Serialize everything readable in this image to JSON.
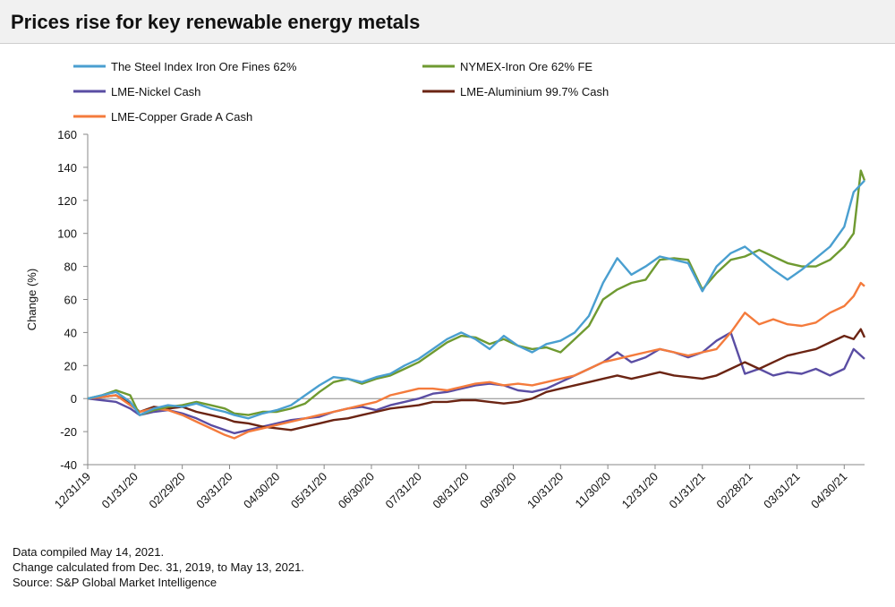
{
  "title": "Prices rise for key renewable energy metals",
  "notes": {
    "compiled": "Data compiled May 14, 2021.",
    "change": "Change calculated from Dec. 31, 2019, to May 13, 2021.",
    "source": "Source: S&P Global Market Intelligence"
  },
  "chart_data": {
    "type": "line",
    "title": "Prices rise for key renewable energy metals",
    "xlabel": "",
    "ylabel": "Change (%)",
    "ylim": [
      -40,
      160
    ],
    "yticks": [
      -40,
      -20,
      0,
      20,
      40,
      60,
      80,
      100,
      120,
      140,
      160
    ],
    "x_range_months": [
      0,
      16.43
    ],
    "xticks": [
      {
        "month": 0,
        "label": "12/31/19"
      },
      {
        "month": 1,
        "label": "01/31/20"
      },
      {
        "month": 2,
        "label": "02/29/20"
      },
      {
        "month": 3,
        "label": "03/31/20"
      },
      {
        "month": 4,
        "label": "04/30/20"
      },
      {
        "month": 5,
        "label": "05/31/20"
      },
      {
        "month": 6,
        "label": "06/30/20"
      },
      {
        "month": 7,
        "label": "07/31/20"
      },
      {
        "month": 8,
        "label": "08/31/20"
      },
      {
        "month": 9,
        "label": "09/30/20"
      },
      {
        "month": 10,
        "label": "10/31/20"
      },
      {
        "month": 11,
        "label": "11/30/20"
      },
      {
        "month": 12,
        "label": "12/31/20"
      },
      {
        "month": 13,
        "label": "01/31/21"
      },
      {
        "month": 14,
        "label": "02/28/21"
      },
      {
        "month": 15,
        "label": "03/31/21"
      },
      {
        "month": 16,
        "label": "04/30/21"
      }
    ],
    "grid": false,
    "legend_placement": "top",
    "series": [
      {
        "name": "The Steel Index Iron Ore Fines 62%",
        "color": "#4a9fd0",
        "x": [
          0,
          0.3,
          0.6,
          0.9,
          1.1,
          1.4,
          1.7,
          2.0,
          2.3,
          2.6,
          2.9,
          3.1,
          3.4,
          3.7,
          4.0,
          4.3,
          4.6,
          4.9,
          5.2,
          5.5,
          5.8,
          6.1,
          6.4,
          6.7,
          7.0,
          7.3,
          7.6,
          7.9,
          8.2,
          8.5,
          8.8,
          9.1,
          9.4,
          9.7,
          10.0,
          10.3,
          10.6,
          10.9,
          11.2,
          11.5,
          11.8,
          12.1,
          12.4,
          12.7,
          13.0,
          13.3,
          13.6,
          13.9,
          14.2,
          14.5,
          14.8,
          15.1,
          15.4,
          15.7,
          16.0,
          16.2,
          16.43
        ],
        "values": [
          0,
          2,
          4,
          -2,
          -10,
          -6,
          -4,
          -5,
          -3,
          -6,
          -8,
          -10,
          -12,
          -9,
          -7,
          -4,
          2,
          8,
          13,
          12,
          10,
          13,
          15,
          20,
          24,
          30,
          36,
          40,
          36,
          30,
          38,
          32,
          28,
          33,
          35,
          40,
          50,
          70,
          85,
          75,
          80,
          86,
          84,
          82,
          65,
          80,
          88,
          92,
          85,
          78,
          72,
          78,
          85,
          92,
          104,
          125,
          132
        ]
      },
      {
        "name": "NYMEX-Iron Ore 62% FE",
        "color": "#6f9a31",
        "x": [
          0,
          0.3,
          0.6,
          0.9,
          1.1,
          1.4,
          1.7,
          2.0,
          2.3,
          2.6,
          2.9,
          3.1,
          3.4,
          3.7,
          4.0,
          4.3,
          4.6,
          4.9,
          5.2,
          5.5,
          5.8,
          6.1,
          6.4,
          6.7,
          7.0,
          7.3,
          7.6,
          7.9,
          8.2,
          8.5,
          8.8,
          9.1,
          9.4,
          9.7,
          10.0,
          10.3,
          10.6,
          10.9,
          11.2,
          11.5,
          11.8,
          12.1,
          12.4,
          12.7,
          13.0,
          13.3,
          13.6,
          13.9,
          14.2,
          14.5,
          14.8,
          15.1,
          15.4,
          15.7,
          16.0,
          16.2,
          16.35,
          16.43
        ],
        "values": [
          0,
          2,
          5,
          2,
          -10,
          -7,
          -5,
          -4,
          -2,
          -4,
          -6,
          -9,
          -10,
          -8,
          -8,
          -6,
          -3,
          4,
          10,
          12,
          9,
          12,
          14,
          18,
          22,
          28,
          34,
          38,
          37,
          33,
          36,
          32,
          30,
          31,
          28,
          36,
          44,
          60,
          66,
          70,
          72,
          84,
          85,
          84,
          66,
          76,
          84,
          86,
          90,
          86,
          82,
          80,
          80,
          84,
          92,
          100,
          138,
          132
        ]
      },
      {
        "name": "LME-Nickel Cash",
        "color": "#5a4da3",
        "x": [
          0,
          0.3,
          0.6,
          0.9,
          1.1,
          1.4,
          1.7,
          2.0,
          2.3,
          2.6,
          2.9,
          3.1,
          3.4,
          3.7,
          4.0,
          4.3,
          4.6,
          4.9,
          5.2,
          5.5,
          5.8,
          6.1,
          6.4,
          6.7,
          7.0,
          7.3,
          7.6,
          7.9,
          8.2,
          8.5,
          8.8,
          9.1,
          9.4,
          9.7,
          10.0,
          10.3,
          10.6,
          10.9,
          11.2,
          11.5,
          11.8,
          12.1,
          12.4,
          12.7,
          13.0,
          13.3,
          13.6,
          13.9,
          14.2,
          14.5,
          14.8,
          15.1,
          15.4,
          15.7,
          16.0,
          16.2,
          16.43
        ],
        "values": [
          0,
          -1,
          -2,
          -6,
          -10,
          -8,
          -7,
          -9,
          -12,
          -16,
          -19,
          -21,
          -19,
          -17,
          -15,
          -13,
          -12,
          -11,
          -8,
          -6,
          -5,
          -7,
          -4,
          -2,
          0,
          3,
          4,
          6,
          8,
          9,
          8,
          5,
          4,
          6,
          10,
          14,
          18,
          22,
          28,
          22,
          25,
          30,
          28,
          25,
          28,
          35,
          40,
          15,
          18,
          14,
          16,
          15,
          18,
          14,
          18,
          30,
          24
        ]
      },
      {
        "name": "LME-Aluminium 99.7% Cash",
        "color": "#6b2413",
        "x": [
          0,
          0.3,
          0.6,
          0.9,
          1.1,
          1.4,
          1.7,
          2.0,
          2.3,
          2.6,
          2.9,
          3.1,
          3.4,
          3.7,
          4.0,
          4.3,
          4.6,
          4.9,
          5.2,
          5.5,
          5.8,
          6.1,
          6.4,
          6.7,
          7.0,
          7.3,
          7.6,
          7.9,
          8.2,
          8.5,
          8.8,
          9.1,
          9.4,
          9.7,
          10.0,
          10.3,
          10.6,
          10.9,
          11.2,
          11.5,
          11.8,
          12.1,
          12.4,
          12.7,
          13.0,
          13.3,
          13.6,
          13.9,
          14.2,
          14.5,
          14.8,
          15.1,
          15.4,
          15.7,
          16.0,
          16.2,
          16.35,
          16.43
        ],
        "values": [
          0,
          1,
          2,
          -3,
          -8,
          -5,
          -6,
          -5,
          -8,
          -10,
          -12,
          -14,
          -15,
          -17,
          -18,
          -19,
          -17,
          -15,
          -13,
          -12,
          -10,
          -8,
          -6,
          -5,
          -4,
          -2,
          -2,
          -1,
          -1,
          -2,
          -3,
          -2,
          0,
          4,
          6,
          8,
          10,
          12,
          14,
          12,
          14,
          16,
          14,
          13,
          12,
          14,
          18,
          22,
          18,
          22,
          26,
          28,
          30,
          34,
          38,
          36,
          42,
          37
        ]
      },
      {
        "name": "LME-Copper Grade A Cash",
        "color": "#f47b3c",
        "x": [
          0,
          0.3,
          0.6,
          0.9,
          1.1,
          1.4,
          1.7,
          2.0,
          2.3,
          2.6,
          2.9,
          3.1,
          3.4,
          3.7,
          4.0,
          4.3,
          4.6,
          4.9,
          5.2,
          5.5,
          5.8,
          6.1,
          6.4,
          6.7,
          7.0,
          7.3,
          7.6,
          7.9,
          8.2,
          8.5,
          8.8,
          9.1,
          9.4,
          9.7,
          10.0,
          10.3,
          10.6,
          10.9,
          11.2,
          11.5,
          11.8,
          12.1,
          12.4,
          12.7,
          13.0,
          13.3,
          13.6,
          13.9,
          14.2,
          14.5,
          14.8,
          15.1,
          15.4,
          15.7,
          16.0,
          16.2,
          16.35,
          16.43
        ],
        "values": [
          0,
          1,
          2,
          -4,
          -8,
          -6,
          -7,
          -10,
          -14,
          -18,
          -22,
          -24,
          -20,
          -18,
          -16,
          -14,
          -12,
          -10,
          -8,
          -6,
          -4,
          -2,
          2,
          4,
          6,
          6,
          5,
          7,
          9,
          10,
          8,
          9,
          8,
          10,
          12,
          14,
          18,
          22,
          24,
          26,
          28,
          30,
          28,
          26,
          28,
          30,
          40,
          52,
          45,
          48,
          45,
          44,
          46,
          52,
          56,
          62,
          70,
          68
        ]
      }
    ]
  }
}
